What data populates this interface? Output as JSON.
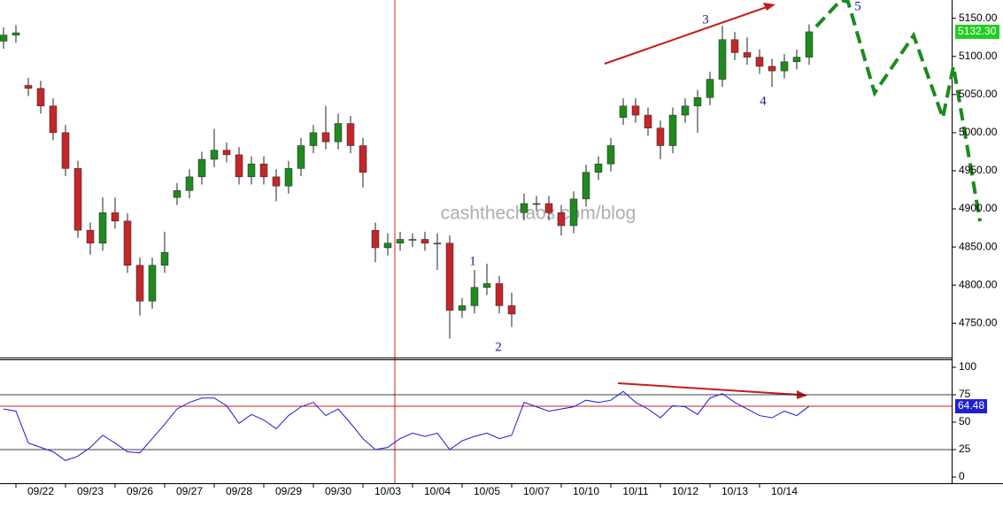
{
  "chart_data": [
    {
      "type": "candlestick",
      "categories": [
        null,
        null,
        null,
        "09/22",
        null,
        null,
        null,
        "09/23",
        null,
        null,
        null,
        "09/26",
        null,
        null,
        null,
        "09/27",
        null,
        null,
        null,
        "09/28",
        null,
        null,
        null,
        "09/29",
        null,
        null,
        null,
        "09/30",
        null,
        null,
        null,
        "10/03",
        null,
        null,
        null,
        "10/04",
        null,
        null,
        null,
        "10/05",
        null,
        null,
        null,
        "10/07",
        null,
        null,
        null,
        "10/10",
        null,
        null,
        null,
        "10/11",
        null,
        null,
        null,
        "10/12",
        null,
        null,
        null,
        "10/13",
        null,
        null,
        null,
        "10/14",
        null,
        null
      ],
      "open": [
        5120,
        5128,
        5062,
        5058,
        5035,
        5000,
        4953,
        4872,
        4855,
        4895,
        4884,
        4826,
        4779,
        4826,
        4915,
        4924,
        4942,
        4965,
        4977,
        4971,
        4942,
        4959,
        4942,
        4930,
        4953,
        4983,
        5000,
        4988,
        5012,
        4983,
        4872,
        4849,
        4855,
        4860,
        4860,
        4855,
        4855,
        4767,
        4773,
        4797,
        4802,
        4773,
        4895,
        4907,
        4907,
        4895,
        4878,
        4913,
        4948,
        4959,
        5020,
        5035,
        5023,
        5006,
        4983,
        5023,
        5035,
        5046,
        5070,
        5122,
        5105,
        5099,
        5087,
        5081,
        5093,
        5099
      ],
      "high": [
        5138,
        5141,
        5072,
        5068,
        5045,
        5010,
        4963,
        4882,
        4915,
        4915,
        4894,
        4836,
        4836,
        4870,
        4934,
        4952,
        4975,
        5005,
        4987,
        4981,
        4969,
        4969,
        4952,
        4963,
        4993,
        5010,
        5035,
        5025,
        5022,
        4993,
        4882,
        4868,
        4870,
        4868,
        4870,
        4868,
        4865,
        4783,
        4820,
        4828,
        4812,
        4790,
        4920,
        4917,
        4917,
        4905,
        4923,
        4958,
        4969,
        4993,
        5045,
        5045,
        5033,
        5016,
        5033,
        5045,
        5056,
        5080,
        5140,
        5132,
        5125,
        5109,
        5097,
        5103,
        5109,
        5142
      ],
      "low": [
        5110,
        5118,
        5048,
        5025,
        4990,
        4943,
        4862,
        4840,
        4845,
        4874,
        4816,
        4760,
        4769,
        4816,
        4905,
        4914,
        4932,
        4955,
        4961,
        4932,
        4932,
        4932,
        4910,
        4920,
        4943,
        4973,
        4978,
        4978,
        4973,
        4928,
        4830,
        4839,
        4845,
        4850,
        4845,
        4820,
        4730,
        4757,
        4763,
        4787,
        4763,
        4745,
        4885,
        4897,
        4885,
        4865,
        4868,
        4903,
        4938,
        4949,
        5010,
        5013,
        4996,
        4965,
        4973,
        5013,
        5000,
        5036,
        5060,
        5095,
        5089,
        5077,
        5060,
        5071,
        5083,
        5089
      ],
      "close": [
        5128,
        5131,
        5058,
        5035,
        5000,
        4953,
        4872,
        4855,
        4895,
        4884,
        4826,
        4779,
        4826,
        4843,
        4924,
        4942,
        4965,
        4977,
        4971,
        4942,
        4959,
        4942,
        4930,
        4953,
        4983,
        5000,
        4988,
        5012,
        4983,
        4948,
        4849,
        4855,
        4860,
        4860,
        4855,
        4855,
        4767,
        4773,
        4797,
        4802,
        4773,
        4762,
        4907,
        4907,
        4895,
        4878,
        4913,
        4948,
        4959,
        4983,
        5035,
        5023,
        5006,
        4983,
        5023,
        5035,
        5046,
        5070,
        5122,
        5105,
        5099,
        5087,
        5081,
        5093,
        5099,
        5132.3
      ],
      "up_color": "#1f8a1f",
      "down_color": "#c4262a",
      "ylim": [
        4705,
        5174
      ],
      "yticks": [
        {
          "value": 4750,
          "label": "4750.00"
        },
        {
          "value": 4800,
          "label": "4800.00"
        },
        {
          "value": 4850,
          "label": "4850.00"
        },
        {
          "value": 4900,
          "label": "4900.00"
        },
        {
          "value": 4950,
          "label": "4950.00"
        },
        {
          "value": 5000,
          "label": "5000.00"
        },
        {
          "value": 5050,
          "label": "5050.00"
        },
        {
          "value": 5100,
          "label": "5100.00"
        },
        {
          "value": 5150,
          "label": "5150.00"
        }
      ],
      "last_label": {
        "value": 5132.3,
        "label": "5132.30"
      },
      "annotation": "cashthechaos.com/blog",
      "wave_labels": [
        "1",
        "2",
        "3",
        "4",
        "5"
      ]
    },
    {
      "type": "line",
      "values": [
        62,
        60,
        31,
        27,
        23,
        15,
        19,
        27,
        38,
        31,
        23,
        22,
        35,
        48,
        62,
        68,
        72,
        72,
        65,
        49,
        57,
        52,
        44,
        56,
        64,
        68,
        56,
        62,
        49,
        35,
        25,
        27,
        35,
        40,
        37,
        40,
        25,
        33,
        37,
        40,
        35,
        38,
        68,
        64,
        60,
        62,
        64,
        70,
        68,
        70,
        78,
        68,
        62,
        54,
        65,
        64,
        57,
        72,
        76,
        68,
        62,
        56,
        54,
        60,
        56,
        64.48
      ],
      "color": "#1a1ad8",
      "ylim": [
        0,
        100
      ],
      "yticks": [
        0,
        25,
        50,
        75,
        100
      ],
      "levels": [
        25,
        75
      ],
      "last_label": 64.48
    }
  ]
}
